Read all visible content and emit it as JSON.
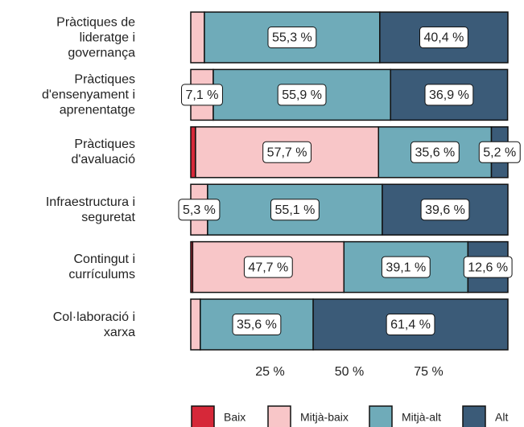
{
  "chart_data": {
    "type": "stacked_bar_horizontal",
    "categories": [
      "Pràctiques de\nlideratge i\ngovernança",
      "Pràctiques\nd'ensenyament i\naprenentatge",
      "Pràctiques\nd'avaluació",
      "Infraestructura i\nseguretat",
      "Contingut i\ncurrículums",
      "Col·laboració i\nxarxa"
    ],
    "series": [
      {
        "name": "Baix",
        "color": "#d62839",
        "values": [
          0,
          0,
          1.5,
          0,
          0.6,
          0
        ],
        "value_labels": [
          null,
          null,
          null,
          null,
          null,
          null
        ]
      },
      {
        "name": "Mitjà-baix",
        "color": "#f8c6c8",
        "values": [
          4.3,
          7.1,
          57.7,
          5.3,
          47.7,
          3.0
        ],
        "value_labels": [
          null,
          "7,1 %",
          "57,7 %",
          "5,3 %",
          "47,7 %",
          null
        ]
      },
      {
        "name": "Mitjà-alt",
        "color": "#6fabb9",
        "values": [
          55.3,
          55.9,
          35.6,
          55.1,
          39.1,
          35.6
        ],
        "value_labels": [
          "55,3 %",
          "55,9 %",
          "35,6 %",
          "55,1 %",
          "39,1 %",
          "35,6 %"
        ]
      },
      {
        "name": "Alt",
        "color": "#3b5b78",
        "values": [
          40.4,
          36.9,
          5.2,
          39.6,
          12.6,
          61.4
        ],
        "value_labels": [
          "40,4 %",
          "36,9 %",
          "5,2 %",
          "39,6 %",
          "12,6 %",
          "61,4 %"
        ]
      }
    ],
    "xlim": [
      0,
      100
    ],
    "xticks": [
      {
        "value": 25,
        "label": "25 %"
      },
      {
        "value": 50,
        "label": "50 %"
      },
      {
        "value": 75,
        "label": "75 %"
      }
    ],
    "legend": "bottom"
  }
}
